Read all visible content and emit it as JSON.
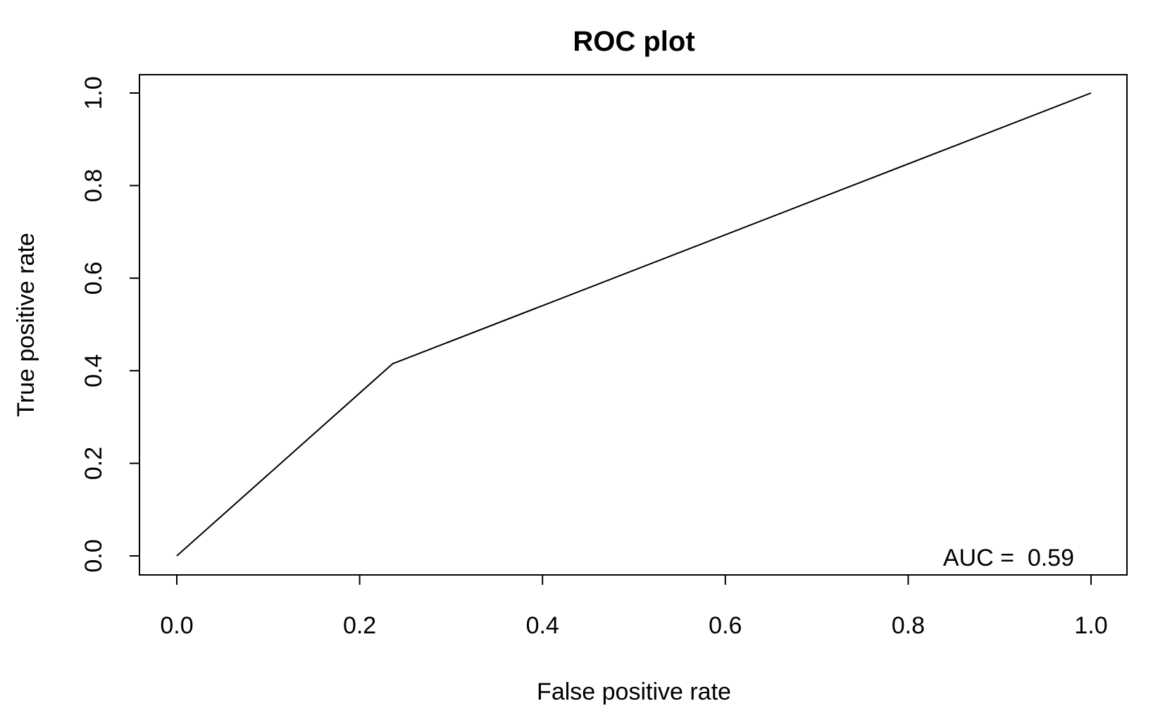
{
  "chart_data": {
    "type": "line",
    "title": "ROC plot",
    "xlabel": "False positive rate",
    "ylabel": "True positive rate",
    "xlim": [
      0.0,
      1.0
    ],
    "ylim": [
      0.0,
      1.0
    ],
    "x_ticks": [
      "0.0",
      "0.2",
      "0.4",
      "0.6",
      "0.8",
      "1.0"
    ],
    "y_ticks": [
      "0.0",
      "0.2",
      "0.4",
      "0.6",
      "0.8",
      "1.0"
    ],
    "grid": false,
    "series": [
      {
        "x": [
          0.0,
          0.236,
          1.0
        ],
        "y": [
          0.0,
          0.415,
          1.0
        ],
        "color": "#000000"
      }
    ],
    "annotation": "AUC =  0.59"
  }
}
